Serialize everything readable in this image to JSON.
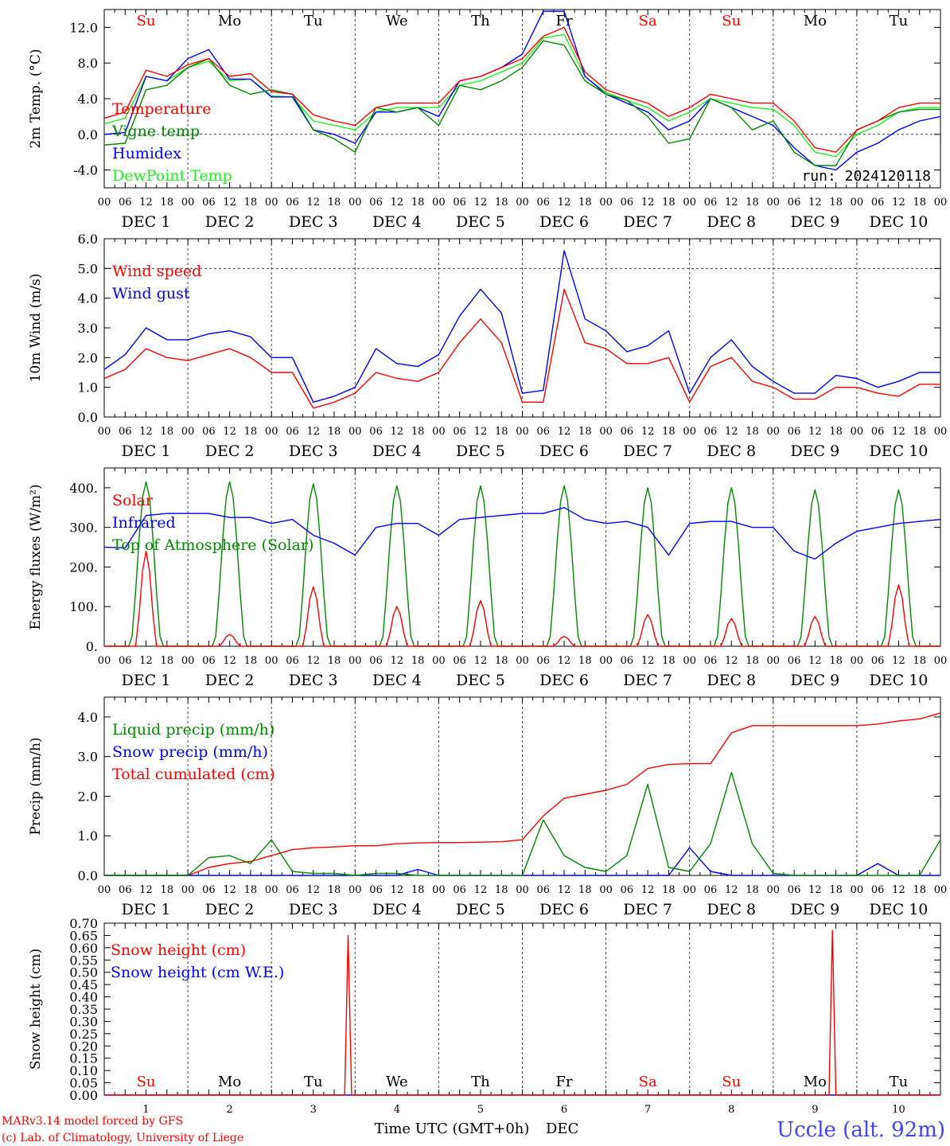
{
  "footer": {
    "credit_line1": "MARv3.14 model forced by GFS",
    "credit_line2": "(c) Lab. of Climatology, University of Liege",
    "xlabel": "Time UTC (GMT+0h)",
    "month_label": "DEC",
    "station": "Uccle (alt. 92m)"
  },
  "colors": {
    "red": "#ff0000",
    "green": "#008800",
    "lightgreen": "#22ee22",
    "blue": "#0000ff",
    "black": "#000000"
  },
  "time_axis": {
    "hour_ticks": [
      "00",
      "06",
      "12",
      "18"
    ],
    "date_labels": [
      "DEC 1",
      "DEC 2",
      "DEC 3",
      "DEC 4",
      "DEC 5",
      "DEC 6",
      "DEC 7",
      "DEC 8",
      "DEC 9",
      "DEC 10"
    ],
    "weekday_labels": [
      "Su",
      "Mo",
      "Tu",
      "We",
      "Th",
      "Fr",
      "Sa",
      "Su",
      "Mo",
      "Tu"
    ],
    "weekend_flags": [
      true,
      false,
      false,
      false,
      false,
      false,
      true,
      true,
      false,
      false
    ],
    "day_numbers": [
      "1",
      "2",
      "3",
      "4",
      "5",
      "6",
      "7",
      "8",
      "9",
      "10"
    ]
  },
  "chart_data": [
    {
      "type": "line",
      "ylabel": "2m Temp. (°C)",
      "ylim": [
        -6,
        14
      ],
      "yticks": [
        -4,
        0,
        4,
        8,
        12
      ],
      "ytick_labels": [
        "-4.0",
        "0.0",
        "4.0",
        "8.0",
        "12.0"
      ],
      "reference_line": 0,
      "annotation": "run: 2024120118",
      "x_hours": [
        0,
        6,
        12,
        18,
        24,
        30,
        36,
        42,
        48,
        54,
        60,
        66,
        72,
        78,
        84,
        90,
        96,
        102,
        108,
        114,
        120,
        126,
        132,
        138,
        144,
        150,
        156,
        162,
        168,
        174,
        180,
        186,
        192,
        198,
        204,
        210,
        216,
        222,
        228,
        234,
        240
      ],
      "series": [
        {
          "name": "Temperature",
          "color": "red",
          "values": [
            1.8,
            2.5,
            7.2,
            6.5,
            7.8,
            8.5,
            6.5,
            6.8,
            4.8,
            4.5,
            2.2,
            1.5,
            1.0,
            3.0,
            3.5,
            3.5,
            3.5,
            6.0,
            6.5,
            7.5,
            8.5,
            11.0,
            12.0,
            7.0,
            5.0,
            4.2,
            3.5,
            2.0,
            3.0,
            4.5,
            4.0,
            3.5,
            3.5,
            1.5,
            -1.5,
            -2.0,
            0.5,
            1.5,
            3.0,
            3.5,
            3.5
          ]
        },
        {
          "name": "Vigne temp",
          "color": "green",
          "values": [
            -1.2,
            -1.0,
            5.0,
            5.5,
            7.5,
            8.5,
            5.5,
            4.5,
            5.0,
            4.5,
            0.5,
            -0.5,
            -2.0,
            3.0,
            2.5,
            3.0,
            1.0,
            5.5,
            5.0,
            6.0,
            7.5,
            10.5,
            10.0,
            6.0,
            4.5,
            3.8,
            2.0,
            -1.0,
            -0.5,
            4.0,
            3.0,
            0.5,
            1.5,
            -2.0,
            -3.5,
            -3.5,
            0.5,
            1.5,
            2.5,
            2.8,
            2.8
          ]
        },
        {
          "name": "Humidex",
          "color": "blue",
          "values": [
            0.0,
            0.2,
            6.5,
            6.0,
            8.5,
            9.5,
            6.2,
            6.2,
            4.2,
            4.2,
            0.5,
            0.0,
            -1.0,
            2.5,
            2.5,
            3.0,
            2.0,
            6.0,
            6.5,
            7.5,
            9.0,
            13.8,
            13.8,
            6.5,
            4.5,
            3.5,
            2.5,
            0.5,
            1.5,
            4.0,
            3.0,
            2.0,
            1.0,
            -1.5,
            -3.5,
            -4.0,
            -2.0,
            -1.0,
            0.5,
            1.5,
            2.0
          ]
        },
        {
          "name": "DewPoint Temp",
          "color": "lightgreen",
          "values": [
            1.2,
            1.8,
            6.5,
            6.0,
            7.5,
            8.2,
            6.0,
            6.2,
            4.3,
            4.2,
            1.5,
            1.0,
            0.5,
            2.5,
            3.0,
            3.0,
            3.0,
            5.5,
            6.0,
            7.0,
            8.0,
            10.8,
            11.2,
            6.5,
            4.7,
            3.8,
            3.0,
            1.5,
            2.5,
            4.0,
            3.5,
            3.0,
            2.8,
            1.0,
            -2.0,
            -2.5,
            0.0,
            1.0,
            2.5,
            3.0,
            3.0
          ]
        }
      ]
    },
    {
      "type": "line",
      "ylabel": "10m Wind (m/s)",
      "ylim": [
        0,
        6
      ],
      "yticks": [
        0,
        1,
        2,
        3,
        4,
        5,
        6
      ],
      "ytick_labels": [
        "0.0",
        "1.0",
        "2.0",
        "3.0",
        "4.0",
        "5.0",
        "6.0"
      ],
      "reference_line": 5,
      "x_hours": [
        0,
        6,
        12,
        18,
        24,
        30,
        36,
        42,
        48,
        54,
        60,
        66,
        72,
        78,
        84,
        90,
        96,
        102,
        108,
        114,
        120,
        126,
        132,
        138,
        144,
        150,
        156,
        162,
        168,
        174,
        180,
        186,
        192,
        198,
        204,
        210,
        216,
        222,
        228,
        234,
        240
      ],
      "series": [
        {
          "name": "Wind speed",
          "color": "red",
          "values": [
            1.3,
            1.6,
            2.3,
            2.0,
            1.9,
            2.1,
            2.3,
            2.0,
            1.5,
            1.5,
            0.3,
            0.5,
            0.8,
            1.5,
            1.3,
            1.2,
            1.5,
            2.5,
            3.3,
            2.5,
            0.5,
            0.5,
            4.3,
            2.5,
            2.3,
            1.8,
            1.8,
            2.0,
            0.5,
            1.7,
            2.0,
            1.2,
            1.0,
            0.6,
            0.6,
            1.0,
            1.0,
            0.8,
            0.7,
            1.1,
            1.1
          ]
        },
        {
          "name": "Wind gust",
          "color": "blue",
          "values": [
            1.6,
            2.1,
            3.0,
            2.6,
            2.6,
            2.8,
            2.9,
            2.7,
            2.0,
            2.0,
            0.5,
            0.7,
            1.0,
            2.3,
            1.8,
            1.7,
            2.1,
            3.4,
            4.3,
            3.5,
            0.8,
            0.9,
            5.6,
            3.3,
            2.9,
            2.2,
            2.4,
            2.9,
            0.8,
            2.0,
            2.6,
            1.7,
            1.2,
            0.8,
            0.8,
            1.4,
            1.3,
            1.0,
            1.2,
            1.5,
            1.5
          ]
        }
      ]
    },
    {
      "type": "line",
      "ylabel": "Energy fluxes (W/m²)",
      "ylim": [
        0,
        450
      ],
      "yticks": [
        0,
        100,
        200,
        300,
        400
      ],
      "ytick_labels": [
        "0.",
        "100.",
        "200.",
        "300.",
        "400."
      ],
      "x_hours": [
        0,
        6,
        12,
        18,
        24,
        30,
        36,
        42,
        48,
        54,
        60,
        66,
        72,
        78,
        84,
        90,
        96,
        102,
        108,
        114,
        120,
        126,
        132,
        138,
        144,
        150,
        156,
        162,
        168,
        174,
        180,
        186,
        192,
        198,
        204,
        210,
        216,
        222,
        228,
        234,
        240
      ],
      "series": [
        {
          "name": "Solar",
          "color": "red",
          "daily_peak_values": [
            240,
            30,
            150,
            100,
            115,
            25,
            80,
            70,
            75,
            155
          ]
        },
        {
          "name": "Infrared",
          "color": "blue",
          "values": [
            250,
            248,
            330,
            335,
            335,
            335,
            325,
            325,
            310,
            320,
            280,
            260,
            230,
            300,
            310,
            310,
            280,
            320,
            325,
            330,
            335,
            335,
            350,
            320,
            310,
            315,
            300,
            230,
            310,
            315,
            315,
            300,
            300,
            240,
            220,
            260,
            290,
            300,
            310,
            315,
            320
          ]
        },
        {
          "name": "Top of Atmosphere (Solar)",
          "color": "green",
          "daily_peak_values": [
            415,
            415,
            410,
            405,
            405,
            405,
            400,
            400,
            395,
            395
          ]
        }
      ]
    },
    {
      "type": "line",
      "ylabel": "Precip (mm/h)",
      "ylim": [
        0,
        4.5
      ],
      "yticks": [
        0,
        1,
        2,
        3,
        4
      ],
      "ytick_labels": [
        "0.0",
        "1.0",
        "2.0",
        "3.0",
        "4.0"
      ],
      "x_hours": [
        0,
        6,
        12,
        18,
        24,
        30,
        36,
        42,
        48,
        54,
        60,
        66,
        72,
        78,
        84,
        90,
        96,
        102,
        108,
        114,
        120,
        126,
        132,
        138,
        144,
        150,
        156,
        162,
        168,
        174,
        180,
        186,
        192,
        198,
        204,
        210,
        216,
        222,
        228,
        234,
        240
      ],
      "series": [
        {
          "name": "Liquid precip (mm/h)",
          "color": "green",
          "values": [
            0,
            0,
            0,
            0,
            0,
            0.45,
            0.5,
            0.3,
            0.9,
            0.1,
            0.05,
            0.05,
            0,
            0.05,
            0.05,
            0,
            0,
            0,
            0,
            0,
            0,
            1.4,
            0.5,
            0.2,
            0.1,
            0.5,
            2.3,
            0.2,
            0.1,
            0.8,
            2.6,
            0.8,
            0.05,
            0,
            0,
            0,
            0,
            0,
            0,
            0,
            0.9
          ]
        },
        {
          "name": "Snow precip (mm/h)",
          "color": "blue",
          "values": [
            0,
            0,
            0,
            0,
            0,
            0,
            0,
            0,
            0,
            0,
            0,
            0,
            0,
            0,
            0,
            0.15,
            0,
            0,
            0,
            0,
            0,
            0,
            0,
            0,
            0,
            0,
            0,
            0,
            0.7,
            0.1,
            0,
            0,
            0,
            0,
            0,
            0,
            0,
            0.3,
            0,
            0,
            0
          ]
        },
        {
          "name": "Total cumulated (cm)",
          "color": "red",
          "values": [
            0,
            0,
            0,
            0,
            0,
            0.2,
            0.3,
            0.35,
            0.5,
            0.65,
            0.7,
            0.72,
            0.75,
            0.75,
            0.8,
            0.82,
            0.83,
            0.83,
            0.84,
            0.85,
            0.9,
            1.5,
            1.95,
            2.05,
            2.15,
            2.3,
            2.7,
            2.8,
            2.82,
            2.82,
            3.6,
            3.78,
            3.78,
            3.78,
            3.78,
            3.78,
            3.78,
            3.82,
            3.9,
            3.95,
            4.1
          ]
        }
      ]
    },
    {
      "type": "line",
      "ylabel": "Snow height (cm)",
      "ylim": [
        0,
        0.7
      ],
      "yticks": [
        0,
        0.05,
        0.1,
        0.15,
        0.2,
        0.25,
        0.3,
        0.35,
        0.4,
        0.45,
        0.5,
        0.55,
        0.6,
        0.65,
        0.7
      ],
      "ytick_labels": [
        "0.00",
        "0.05",
        "0.10",
        "0.15",
        "0.20",
        "0.25",
        "0.30",
        "0.35",
        "0.40",
        "0.45",
        "0.50",
        "0.55",
        "0.60",
        "0.65",
        "0.70"
      ],
      "x_hours": [
        0,
        69,
        70,
        71,
        72,
        208,
        209,
        210,
        211,
        240
      ],
      "series": [
        {
          "name": "Snow height (cm)",
          "color": "red",
          "values": [
            0,
            0,
            0.65,
            0,
            0,
            0,
            0.67,
            0,
            0,
            0
          ]
        },
        {
          "name": "Snow height (cm W.E.)",
          "color": "blue",
          "values": [
            0,
            0,
            0,
            0,
            0,
            0,
            0,
            0,
            0,
            0
          ]
        }
      ]
    }
  ]
}
